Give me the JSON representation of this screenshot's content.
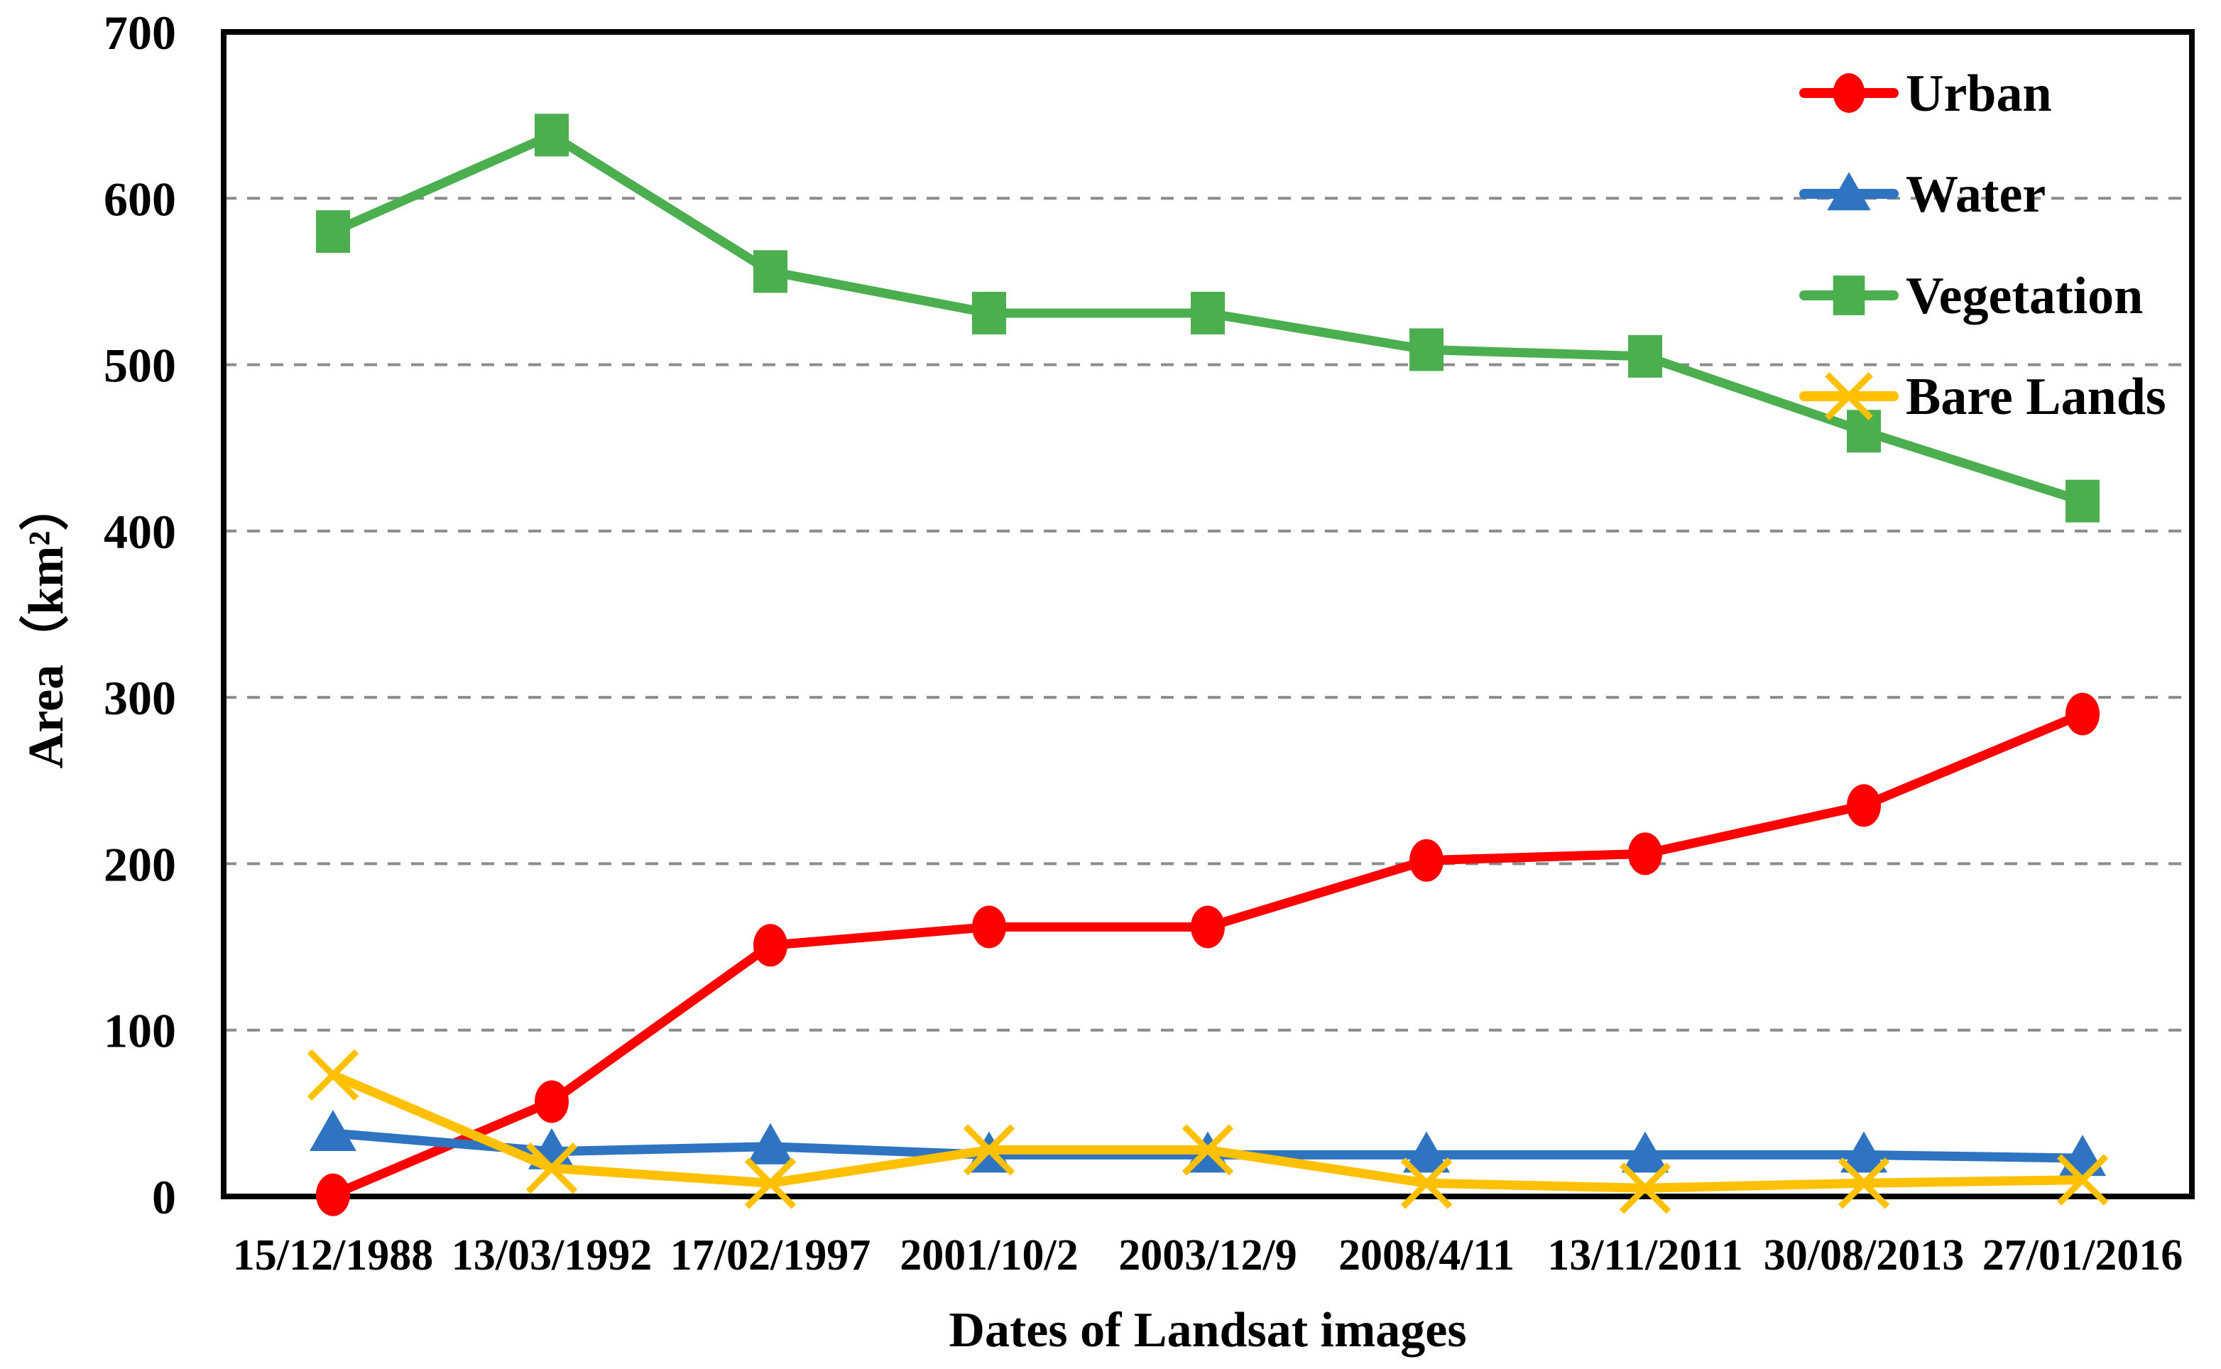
{
  "chart_data": {
    "type": "line",
    "title": "",
    "xlabel": "Dates of Landsat images",
    "ylabel": "Area（km²）",
    "ylim": [
      0,
      700
    ],
    "ytick_step": 100,
    "yticks": [
      0,
      100,
      200,
      300,
      400,
      500,
      600,
      700
    ],
    "grid": "horizontal dashed gray lines at 100-600",
    "legend_position": "top-right-inside",
    "categories": [
      "15/12/1988",
      "13/03/1992",
      "17/02/1997",
      "2001/10/2",
      "2003/12/9",
      "2008/4/11",
      "13/11/2011",
      "30/08/2013",
      "27/01/2016"
    ],
    "series": [
      {
        "name": "Urban",
        "color": "#FF0000",
        "marker": "circle",
        "values": [
          1,
          57,
          151,
          162,
          162,
          202,
          206,
          235,
          290
        ]
      },
      {
        "name": "Water",
        "color": "#2E74C0",
        "marker": "triangle",
        "values": [
          38,
          27,
          30,
          25,
          25,
          25,
          25,
          25,
          23
        ]
      },
      {
        "name": "Vegetation",
        "color": "#4BAE4F",
        "marker": "square",
        "values": [
          580,
          638,
          556,
          531,
          531,
          509,
          505,
          460,
          418
        ]
      },
      {
        "name": "Bare Lands",
        "color": "#FFC000",
        "marker": "x",
        "values": [
          73,
          17,
          8,
          28,
          28,
          8,
          5,
          8,
          10
        ]
      }
    ],
    "colors": {
      "grid": "#8c8c8c",
      "axis": "#000000",
      "background": "#ffffff"
    }
  }
}
